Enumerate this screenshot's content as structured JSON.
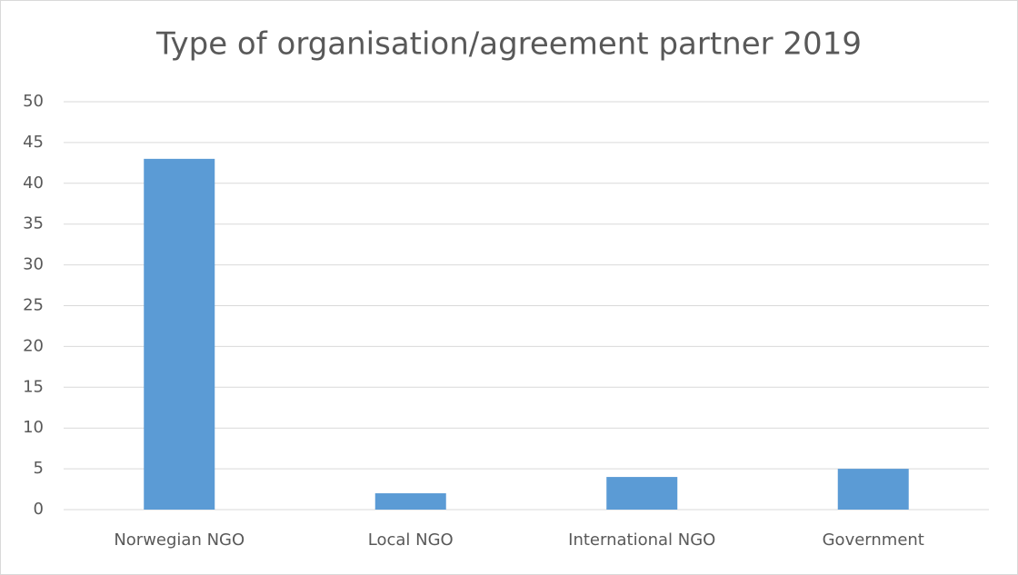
{
  "chart_data": {
    "type": "bar",
    "title": "Type of organisation/agreement partner 2019",
    "categories": [
      "Norwegian NGO",
      "Local NGO",
      "International NGO",
      "Government"
    ],
    "values": [
      43,
      2,
      4,
      5
    ],
    "color": "#5b9bd5",
    "ylim": [
      0,
      50
    ],
    "yticks": [
      0,
      5,
      10,
      15,
      20,
      25,
      30,
      35,
      40,
      45,
      50
    ],
    "grid": true
  }
}
